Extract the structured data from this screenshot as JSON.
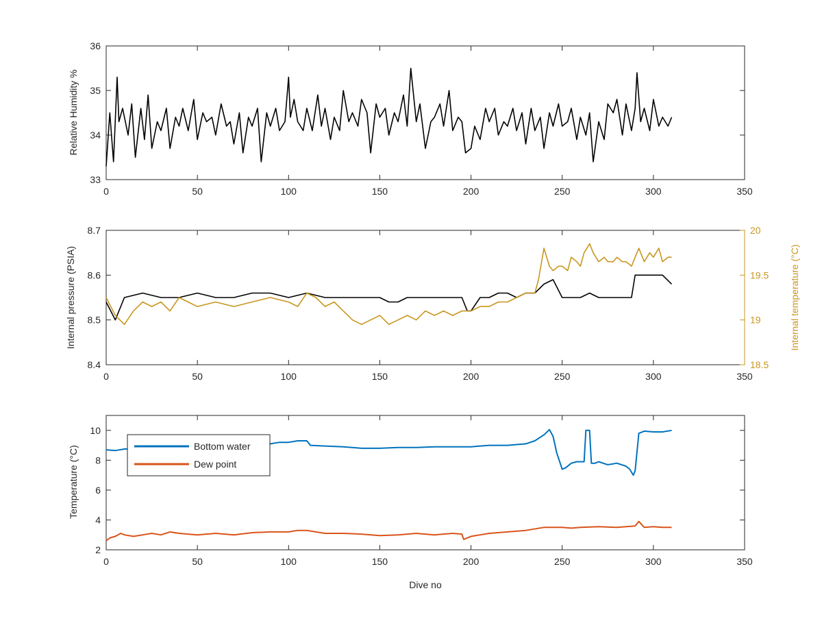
{
  "chart_data": [
    {
      "type": "line",
      "title": "",
      "xlabel": "",
      "ylabel": "Relative Humidity %",
      "xlim": [
        0,
        350
      ],
      "ylim": [
        33,
        36
      ],
      "xticks": [
        0,
        50,
        100,
        150,
        200,
        250,
        300,
        350
      ],
      "yticks": [
        33,
        34,
        35,
        36
      ],
      "grid": false,
      "series": [
        {
          "color": "#000000",
          "x": [
            0,
            2,
            4,
            6,
            7,
            9,
            12,
            14,
            16,
            19,
            21,
            23,
            25,
            28,
            30,
            33,
            35,
            38,
            40,
            42,
            45,
            48,
            50,
            53,
            55,
            58,
            60,
            63,
            66,
            68,
            70,
            73,
            75,
            78,
            80,
            83,
            85,
            88,
            90,
            93,
            95,
            98,
            100,
            101,
            103,
            105,
            108,
            110,
            113,
            116,
            118,
            120,
            123,
            125,
            128,
            130,
            133,
            135,
            138,
            140,
            143,
            145,
            148,
            150,
            153,
            155,
            158,
            160,
            163,
            165,
            167,
            170,
            172,
            175,
            178,
            180,
            183,
            185,
            188,
            190,
            193,
            195,
            197,
            200,
            202,
            205,
            208,
            210,
            213,
            215,
            218,
            220,
            223,
            225,
            228,
            230,
            233,
            235,
            238,
            240,
            243,
            245,
            248,
            250,
            253,
            255,
            258,
            260,
            263,
            265,
            267,
            270,
            273,
            275,
            278,
            280,
            283,
            285,
            288,
            290,
            291,
            293,
            295,
            298,
            300,
            303,
            305,
            308,
            310
          ],
          "y": [
            33.3,
            34.5,
            33.4,
            35.3,
            34.3,
            34.6,
            34.0,
            34.7,
            33.5,
            34.6,
            33.9,
            34.9,
            33.7,
            34.3,
            34.1,
            34.6,
            33.7,
            34.4,
            34.2,
            34.6,
            34.1,
            34.8,
            33.9,
            34.5,
            34.3,
            34.4,
            34.0,
            34.7,
            34.2,
            34.3,
            33.8,
            34.5,
            33.6,
            34.4,
            34.2,
            34.6,
            33.4,
            34.5,
            34.2,
            34.6,
            34.1,
            34.3,
            35.3,
            34.4,
            34.8,
            34.3,
            34.1,
            34.6,
            34.1,
            34.9,
            34.2,
            34.6,
            33.9,
            34.4,
            34.1,
            35.0,
            34.3,
            34.5,
            34.2,
            34.8,
            34.5,
            33.6,
            34.7,
            34.4,
            34.6,
            34.0,
            34.5,
            34.3,
            34.9,
            34.2,
            35.5,
            34.3,
            34.7,
            33.7,
            34.3,
            34.4,
            34.7,
            34.2,
            35.0,
            34.1,
            34.4,
            34.3,
            33.6,
            33.7,
            34.2,
            33.9,
            34.6,
            34.3,
            34.6,
            34.0,
            34.3,
            34.2,
            34.6,
            34.1,
            34.5,
            33.8,
            34.6,
            34.1,
            34.4,
            33.7,
            34.5,
            34.2,
            34.7,
            34.2,
            34.3,
            34.6,
            33.9,
            34.4,
            34.0,
            34.5,
            33.4,
            34.3,
            33.9,
            34.7,
            34.5,
            34.8,
            34.0,
            34.7,
            34.1,
            34.6,
            35.4,
            34.3,
            34.6,
            34.1,
            34.8,
            34.2,
            34.4,
            34.2,
            34.4
          ]
        }
      ]
    },
    {
      "type": "line",
      "title": "",
      "xlabel": "",
      "ylabel": "Internal pressure (PSIA)",
      "ylabel_right": "Internal temperature (°C)",
      "xlim": [
        0,
        350
      ],
      "ylim": [
        8.4,
        8.7
      ],
      "ylim_right": [
        18.5,
        20
      ],
      "xticks": [
        0,
        50,
        100,
        150,
        200,
        250,
        300,
        350
      ],
      "yticks": [
        "8.4",
        "8.5",
        "8.6",
        "8.7"
      ],
      "yticks_right": [
        "18.5",
        "19",
        "19.5",
        "20"
      ],
      "grid": false,
      "right_axis_color": "#c8961e",
      "series": [
        {
          "axis": "left",
          "color": "#000000",
          "x": [
            0,
            5,
            10,
            20,
            30,
            40,
            50,
            60,
            70,
            80,
            90,
            100,
            110,
            120,
            130,
            140,
            150,
            155,
            160,
            165,
            170,
            175,
            180,
            185,
            190,
            195,
            198,
            200,
            205,
            210,
            215,
            220,
            225,
            230,
            235,
            240,
            245,
            250,
            255,
            260,
            265,
            270,
            275,
            280,
            285,
            288,
            290,
            295,
            300,
            305,
            310
          ],
          "y": [
            8.54,
            8.5,
            8.55,
            8.56,
            8.55,
            8.55,
            8.56,
            8.55,
            8.55,
            8.56,
            8.56,
            8.55,
            8.56,
            8.55,
            8.55,
            8.55,
            8.55,
            8.54,
            8.54,
            8.55,
            8.55,
            8.55,
            8.55,
            8.55,
            8.55,
            8.55,
            8.52,
            8.52,
            8.55,
            8.55,
            8.56,
            8.56,
            8.55,
            8.56,
            8.56,
            8.58,
            8.59,
            8.55,
            8.55,
            8.55,
            8.56,
            8.55,
            8.55,
            8.55,
            8.55,
            8.55,
            8.6,
            8.6,
            8.6,
            8.6,
            8.58
          ]
        },
        {
          "axis": "right",
          "color": "#c8961e",
          "x": [
            0,
            5,
            10,
            15,
            20,
            25,
            30,
            35,
            40,
            50,
            60,
            70,
            80,
            90,
            100,
            105,
            110,
            115,
            120,
            125,
            130,
            135,
            140,
            145,
            150,
            155,
            160,
            165,
            170,
            175,
            180,
            185,
            190,
            195,
            200,
            205,
            210,
            215,
            220,
            225,
            230,
            235,
            237,
            240,
            243,
            245,
            248,
            250,
            253,
            255,
            258,
            260,
            262,
            265,
            267,
            270,
            273,
            275,
            278,
            280,
            283,
            285,
            288,
            290,
            292,
            295,
            298,
            300,
            303,
            305,
            308,
            310
          ],
          "y": [
            19.25,
            19.05,
            18.95,
            19.1,
            19.2,
            19.15,
            19.2,
            19.1,
            19.25,
            19.15,
            19.2,
            19.15,
            19.2,
            19.25,
            19.2,
            19.15,
            19.3,
            19.25,
            19.15,
            19.2,
            19.1,
            19.0,
            18.95,
            19.0,
            19.05,
            18.95,
            19.0,
            19.05,
            19.0,
            19.1,
            19.05,
            19.1,
            19.05,
            19.1,
            19.1,
            19.15,
            19.15,
            19.2,
            19.2,
            19.25,
            19.3,
            19.3,
            19.45,
            19.8,
            19.6,
            19.55,
            19.6,
            19.6,
            19.55,
            19.7,
            19.65,
            19.6,
            19.75,
            19.85,
            19.75,
            19.65,
            19.7,
            19.65,
            19.65,
            19.7,
            19.65,
            19.65,
            19.6,
            19.7,
            19.8,
            19.65,
            19.75,
            19.7,
            19.8,
            19.65,
            19.7,
            19.7
          ]
        }
      ]
    },
    {
      "type": "line",
      "title": "",
      "xlabel": "Dive no",
      "ylabel": "Temperature (°C)",
      "xlim": [
        0,
        350
      ],
      "ylim": [
        2,
        11
      ],
      "xticks": [
        0,
        50,
        100,
        150,
        200,
        250,
        300,
        350
      ],
      "yticks": [
        2,
        4,
        6,
        8,
        10
      ],
      "grid": false,
      "legend": "top-left",
      "series": [
        {
          "name": "Bottom water",
          "color": "#0072bd",
          "x": [
            0,
            5,
            10,
            20,
            30,
            40,
            50,
            60,
            70,
            80,
            90,
            95,
            100,
            105,
            110,
            112,
            120,
            130,
            140,
            150,
            160,
            170,
            180,
            190,
            200,
            205,
            210,
            215,
            220,
            225,
            230,
            235,
            240,
            243,
            245,
            247,
            250,
            252,
            255,
            258,
            260,
            262,
            263,
            265,
            266,
            268,
            270,
            275,
            280,
            285,
            287,
            289,
            290,
            292,
            295,
            300,
            305,
            310
          ],
          "y": [
            8.7,
            8.65,
            8.75,
            8.8,
            8.85,
            8.8,
            8.85,
            8.9,
            8.95,
            9.0,
            9.1,
            9.2,
            9.2,
            9.3,
            9.3,
            9.0,
            8.95,
            8.9,
            8.8,
            8.8,
            8.85,
            8.85,
            8.9,
            8.9,
            8.9,
            8.95,
            9.0,
            9.0,
            9.0,
            9.05,
            9.1,
            9.3,
            9.7,
            10.05,
            9.6,
            8.5,
            7.4,
            7.5,
            7.8,
            7.9,
            7.9,
            7.9,
            10.0,
            10.0,
            7.8,
            7.8,
            7.9,
            7.7,
            7.8,
            7.6,
            7.4,
            7.0,
            7.3,
            9.8,
            9.95,
            9.9,
            9.9,
            10.0
          ]
        },
        {
          "name": "Dew point",
          "color": "#d95319",
          "x": [
            0,
            2,
            5,
            8,
            10,
            15,
            20,
            25,
            30,
            35,
            40,
            50,
            60,
            70,
            80,
            90,
            100,
            105,
            110,
            115,
            120,
            130,
            140,
            150,
            160,
            170,
            180,
            190,
            195,
            196,
            200,
            205,
            210,
            220,
            230,
            240,
            245,
            250,
            255,
            260,
            270,
            280,
            285,
            290,
            292,
            295,
            300,
            305,
            310
          ],
          "y": [
            2.6,
            2.8,
            2.9,
            3.1,
            3.0,
            2.9,
            3.0,
            3.1,
            3.0,
            3.2,
            3.1,
            3.0,
            3.1,
            3.0,
            3.15,
            3.2,
            3.2,
            3.3,
            3.3,
            3.2,
            3.1,
            3.1,
            3.05,
            2.95,
            3.0,
            3.1,
            3.0,
            3.1,
            3.05,
            2.7,
            2.9,
            3.0,
            3.1,
            3.2,
            3.3,
            3.5,
            3.5,
            3.5,
            3.45,
            3.5,
            3.55,
            3.5,
            3.55,
            3.6,
            3.9,
            3.5,
            3.55,
            3.5,
            3.5
          ]
        }
      ]
    }
  ]
}
